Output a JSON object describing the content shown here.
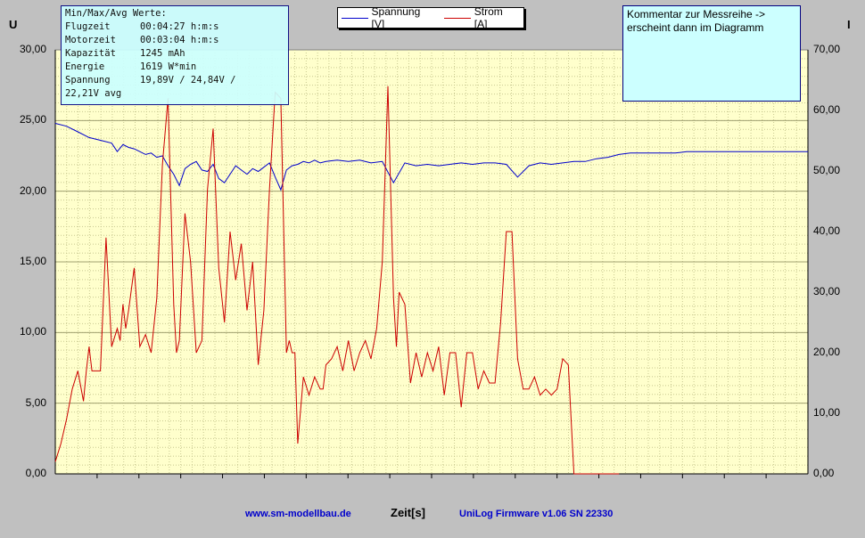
{
  "chart_data": {
    "type": "line",
    "title": "",
    "xlabel": "Zeit[s]",
    "ylabel_left": "U",
    "ylabel_right": "I",
    "ylim_left": [
      0,
      30
    ],
    "ylim_right": [
      0,
      70
    ],
    "yticks_left": [
      "0,00",
      "5,00",
      "10,00",
      "15,00",
      "20,00",
      "25,00",
      "30,00"
    ],
    "yticks_right": [
      "0,00",
      "10,00",
      "20,00",
      "30,00",
      "40,00",
      "50,00",
      "60,00",
      "70,00"
    ],
    "x_range": [
      0,
      267
    ],
    "grid": true,
    "legend_position": "top-center",
    "series": [
      {
        "name": "Spannung [V]",
        "axis": "left",
        "color": "#0000cc",
        "x": [
          0,
          4,
          8,
          12,
          16,
          20,
          22,
          24,
          26,
          28,
          30,
          32,
          34,
          36,
          38,
          40,
          42,
          44,
          46,
          48,
          50,
          52,
          54,
          56,
          58,
          60,
          62,
          64,
          66,
          68,
          70,
          72,
          74,
          76,
          78,
          80,
          82,
          84,
          86,
          88,
          90,
          92,
          94,
          96,
          100,
          104,
          108,
          112,
          116,
          120,
          124,
          128,
          132,
          136,
          140,
          144,
          148,
          152,
          156,
          160,
          164,
          168,
          172,
          176,
          180,
          184,
          188,
          192,
          196,
          200,
          204,
          208,
          212,
          216,
          220,
          224,
          228,
          232,
          236,
          240,
          244,
          248,
          252,
          256,
          260,
          264,
          267
        ],
        "values": [
          24.8,
          24.6,
          24.2,
          23.8,
          23.6,
          23.4,
          22.8,
          23.3,
          23.1,
          23.0,
          22.8,
          22.6,
          22.7,
          22.4,
          22.5,
          21.8,
          21.2,
          20.4,
          21.6,
          21.9,
          22.1,
          21.5,
          21.4,
          21.9,
          20.9,
          20.6,
          21.2,
          21.8,
          21.5,
          21.2,
          21.6,
          21.4,
          21.7,
          22.0,
          21.0,
          20.1,
          21.5,
          21.8,
          21.9,
          22.1,
          22.0,
          22.2,
          22.0,
          22.1,
          22.2,
          22.1,
          22.2,
          22.0,
          22.1,
          20.6,
          22.0,
          21.8,
          21.9,
          21.8,
          21.9,
          22.0,
          21.9,
          22.0,
          22.0,
          21.9,
          21.0,
          21.8,
          22.0,
          21.9,
          22.0,
          22.1,
          22.1,
          22.3,
          22.4,
          22.6,
          22.7,
          22.7,
          22.7,
          22.7,
          22.7,
          22.8,
          22.8,
          22.8,
          22.8,
          22.8,
          22.8,
          22.8,
          22.8,
          22.8,
          22.8,
          22.8,
          22.8
        ]
      },
      {
        "name": "Strom [A]",
        "axis": "right",
        "color": "#cc0000",
        "x": [
          0,
          2,
          4,
          6,
          8,
          10,
          11,
          12,
          13,
          14,
          16,
          18,
          20,
          22,
          23,
          24,
          25,
          26,
          28,
          30,
          32,
          34,
          36,
          38,
          40,
          41,
          42,
          43,
          44,
          46,
          48,
          50,
          52,
          54,
          56,
          58,
          60,
          62,
          64,
          66,
          68,
          70,
          72,
          74,
          76,
          78,
          80,
          82,
          83,
          84,
          85,
          86,
          88,
          90,
          92,
          94,
          95,
          96,
          98,
          100,
          102,
          104,
          106,
          108,
          110,
          112,
          114,
          116,
          118,
          120,
          121,
          122,
          124,
          126,
          128,
          130,
          132,
          134,
          136,
          138,
          140,
          142,
          144,
          146,
          148,
          150,
          152,
          154,
          156,
          158,
          160,
          162,
          164,
          166,
          168,
          170,
          172,
          174,
          176,
          178,
          180,
          182,
          184,
          186,
          188,
          190,
          192,
          194,
          196,
          198,
          200
        ],
        "values": [
          2,
          5,
          9,
          14,
          17,
          12,
          17,
          21,
          17,
          17,
          17,
          39,
          21,
          24,
          22,
          28,
          24,
          27,
          34,
          21,
          23,
          20,
          29,
          51,
          62,
          45,
          28,
          20,
          22,
          43,
          35,
          20,
          22,
          47,
          57,
          34,
          25,
          40,
          32,
          38,
          27,
          35,
          18,
          27,
          47,
          63,
          62,
          20,
          22,
          20,
          20,
          5,
          16,
          13,
          16,
          14,
          14,
          18,
          19,
          21,
          17,
          22,
          17,
          20,
          22,
          19,
          24,
          35,
          64,
          29,
          21,
          30,
          28,
          15,
          20,
          16,
          20,
          17,
          21,
          13,
          20,
          20,
          11,
          20,
          20,
          14,
          17,
          15,
          15,
          25,
          40,
          40,
          19,
          14,
          14,
          16,
          13,
          14,
          13,
          14,
          19,
          18,
          0,
          0,
          0,
          0,
          0,
          0,
          0,
          0,
          0
        ]
      }
    ]
  },
  "legend": {
    "items": [
      {
        "label": "Spannung [V]",
        "color": "#0000cc"
      },
      {
        "label": "Strom [A]",
        "color": "#cc0000"
      }
    ]
  },
  "stats_box": {
    "header": "Min/Max/Avg Werte:",
    "rows": [
      {
        "label": "Flugzeit",
        "value": "00:04:27 h:m:s"
      },
      {
        "label": "Motorzeit",
        "value": "00:03:04 h:m:s"
      },
      {
        "label": "Kapazität",
        "value": "1245 mAh"
      },
      {
        "label": "Energie",
        "value": "1619 W*min"
      },
      {
        "label": "Spannung",
        "value": "19,89V / 24,84V /"
      }
    ],
    "continuation": "22,21V avg"
  },
  "comment_box": {
    "line1": "Kommentar zur Messreihe ->",
    "line2": "erscheint dann im Diagramm"
  },
  "footer": {
    "url": "www.sm-modellbau.de",
    "xlabel": "Zeit[s]",
    "firmware": "UniLog Firmware v1.06 SN 22330"
  },
  "colors": {
    "plot_background": "#ffffcc",
    "window_background": "#c0c0c0",
    "info_box_background": "#ccffff",
    "voltage": "#0000cc",
    "current": "#cc0000"
  }
}
